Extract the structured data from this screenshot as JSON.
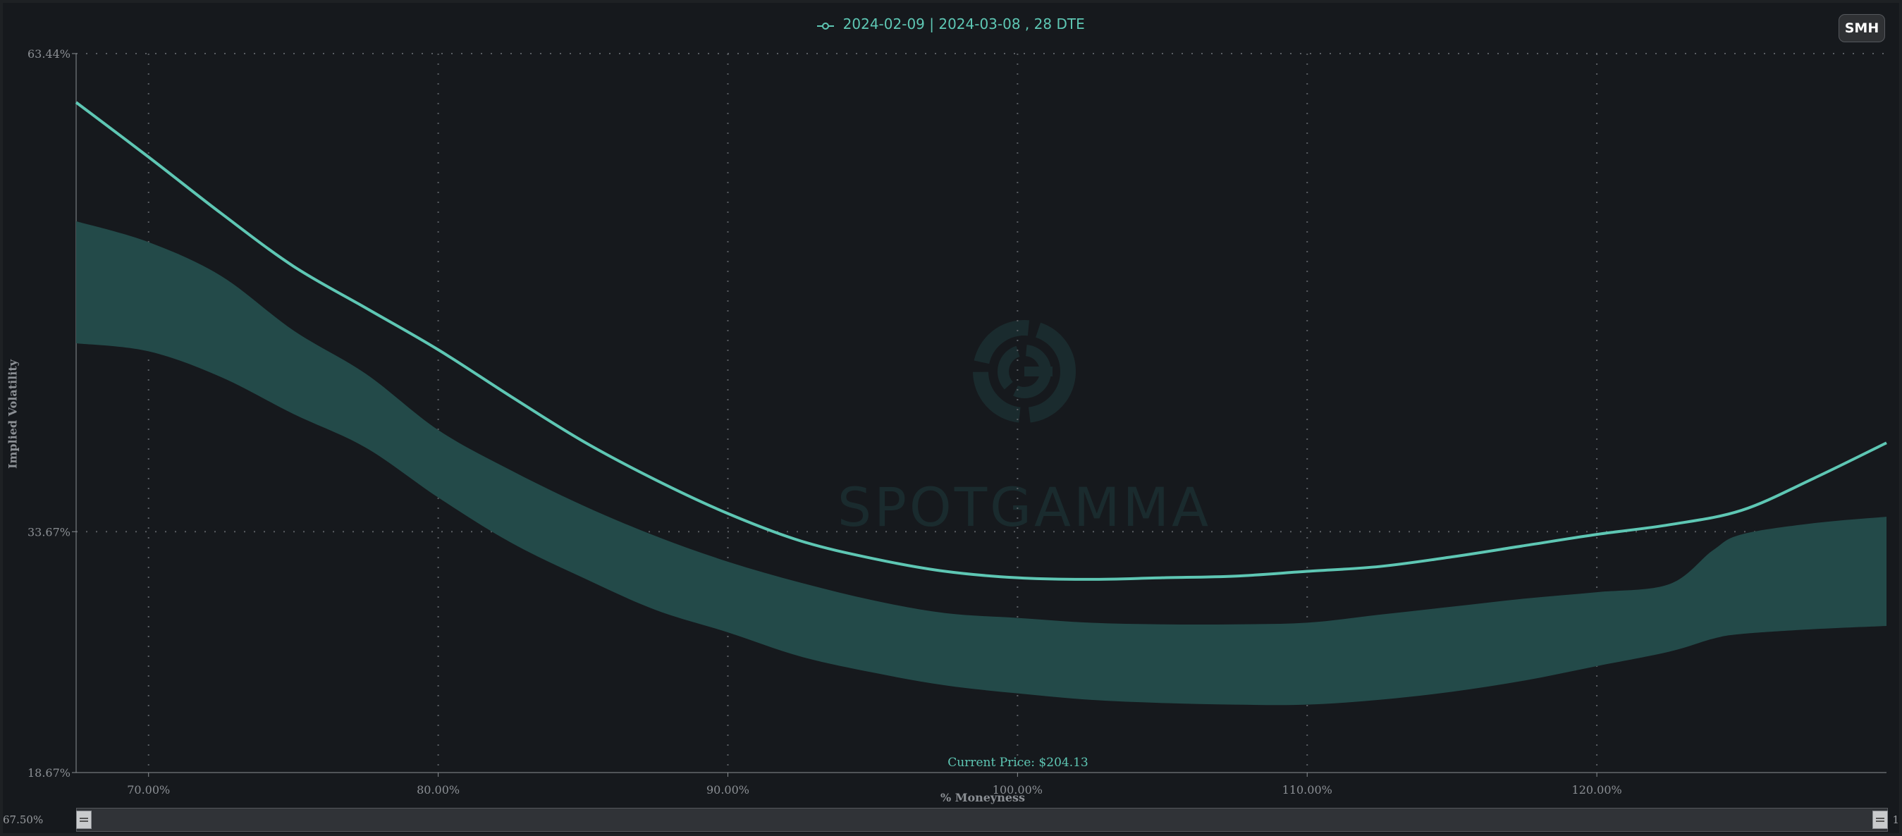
{
  "ticker": "SMH",
  "current_price_label": "Current Price: $204.13",
  "scroll": {
    "left_label": "67.50%",
    "right_label": "1"
  },
  "colors": {
    "line": "#5ec7b4",
    "band": "#234a49",
    "background": "#16191d",
    "axis_text": "#8b8f94"
  },
  "chart_data": {
    "type": "line",
    "title": "",
    "legend": [
      "2024-02-09 | 2024-03-08 , 28 DTE"
    ],
    "legend_placement": "top-center",
    "xlabel": "% Moneyness",
    "ylabel": "Implied Volatility",
    "xlim": [
      67.5,
      130
    ],
    "ylim": [
      18.67,
      63.44
    ],
    "grid": true,
    "x_ticks": [
      70,
      80,
      90,
      100,
      110,
      120
    ],
    "x_tick_labels": [
      "70.00%",
      "80.00%",
      "90.00%",
      "100.00%",
      "110.00%",
      "120.00%"
    ],
    "y_ticks": [
      18.67,
      33.67,
      63.44
    ],
    "y_tick_labels": [
      "18.67%",
      "33.67%",
      "63.44%"
    ],
    "current_price_x": 100,
    "series": [
      {
        "name": "2024-02-09 | 2024-03-08 , 28 DTE",
        "x": [
          67.5,
          70,
          72.5,
          75,
          77.5,
          80,
          82.5,
          85,
          87.5,
          90,
          92.5,
          95,
          97.5,
          100,
          102.5,
          105,
          107.5,
          110,
          112.5,
          115,
          117.5,
          120,
          122.5,
          125,
          127.5,
          130
        ],
        "y": [
          60.4,
          57.0,
          53.5,
          50.2,
          47.6,
          45.0,
          42.1,
          39.3,
          36.9,
          34.8,
          33.1,
          32.0,
          31.2,
          30.8,
          30.7,
          30.8,
          30.9,
          31.2,
          31.5,
          32.1,
          32.8,
          33.5,
          34.1,
          35.0,
          37.0,
          39.2
        ]
      }
    ],
    "band": {
      "x": [
        67.5,
        70,
        72.5,
        75,
        77.5,
        80,
        82.5,
        85,
        87.5,
        90,
        92.5,
        95,
        97.5,
        100,
        102.5,
        105,
        107.5,
        110,
        112.5,
        115,
        117.5,
        120,
        122.5,
        124,
        125,
        127.5,
        130
      ],
      "upper": [
        53.0,
        51.7,
        49.6,
        46.2,
        43.5,
        40.0,
        37.5,
        35.3,
        33.4,
        31.8,
        30.5,
        29.4,
        28.6,
        28.3,
        28.0,
        27.9,
        27.9,
        28.0,
        28.5,
        29.0,
        29.5,
        29.9,
        30.4,
        32.5,
        33.5,
        34.2,
        34.6
      ],
      "lower": [
        45.4,
        44.9,
        43.3,
        41.0,
        38.9,
        35.8,
        33.0,
        30.8,
        28.8,
        27.4,
        25.9,
        24.9,
        24.1,
        23.6,
        23.2,
        23.0,
        22.9,
        22.9,
        23.2,
        23.7,
        24.4,
        25.3,
        26.2,
        27.0,
        27.3,
        27.6,
        27.8
      ]
    }
  }
}
